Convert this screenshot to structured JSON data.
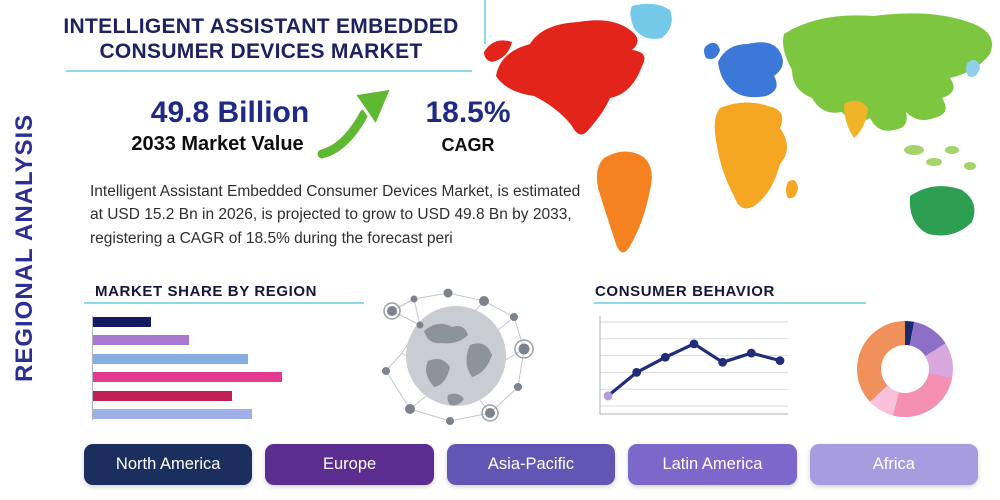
{
  "page": {
    "title": "INTELLIGENT ASSISTANT EMBEDDED CONSUMER DEVICES MARKET",
    "side_label": "REGIONAL ANALYSIS"
  },
  "stats": {
    "market_value": "49.8 Billion",
    "market_value_caption": "2033 Market Value",
    "cagr": "18.5%",
    "cagr_caption": "CAGR"
  },
  "description": "Intelligent Assistant Embedded Consumer Devices Market, is estimated at USD 15.2 Bn in 2026, is projected to grow to USD 49.8 Bn by 2033, registering a CAGR of 18.5% during the forecast peri",
  "section_headings": {
    "market_share": "MARKET SHARE BY REGION",
    "consumer_behavior": "CONSUMER BEHAVIOR"
  },
  "accent": {
    "line_color": "#8fd8ea",
    "arrow_green": "#5fb832",
    "title_navy": "#1e2160"
  },
  "region_buttons": [
    {
      "label": "North America",
      "color": "#1b2f5e"
    },
    {
      "label": "Europe",
      "color": "#5b2d90"
    },
    {
      "label": "Asia-Pacific",
      "color": "#6355b4"
    },
    {
      "label": "Latin America",
      "color": "#7b68ca"
    },
    {
      "label": "Africa",
      "color": "#a89ce0"
    }
  ],
  "map": {
    "regions": [
      {
        "name": "north-america",
        "color": "#e3241b"
      },
      {
        "name": "alaska",
        "color": "#e3241b"
      },
      {
        "name": "greenland",
        "color": "#74c8e8"
      },
      {
        "name": "south-america",
        "color": "#f58220"
      },
      {
        "name": "europe",
        "color": "#3c78d8"
      },
      {
        "name": "uk",
        "color": "#3c78d8"
      },
      {
        "name": "africa",
        "color": "#f5a623"
      },
      {
        "name": "madagascar",
        "color": "#f5a623"
      },
      {
        "name": "asia",
        "color": "#7dc63f"
      },
      {
        "name": "india",
        "color": "#f0b429"
      },
      {
        "name": "southeast-asia",
        "color": "#a5d46a"
      },
      {
        "name": "japan",
        "color": "#8fd0e8"
      },
      {
        "name": "australia",
        "color": "#2e9e52"
      }
    ]
  },
  "chart_data": [
    {
      "type": "bar",
      "orientation": "horizontal",
      "title": "MARKET SHARE BY REGION",
      "values": [
        29,
        48,
        78,
        95,
        70,
        80
      ],
      "colors": [
        "#151b60",
        "#a678cf",
        "#85ade0",
        "#e23a8e",
        "#c01e56",
        "#9fb0e8"
      ],
      "xlim": [
        0,
        100
      ],
      "grid": false,
      "legend": "none"
    },
    {
      "type": "line",
      "title": "CONSUMER BEHAVIOR",
      "x": [
        1,
        2,
        3,
        4,
        5,
        6,
        7
      ],
      "values": [
        1.2,
        4.0,
        5.8,
        7.4,
        5.2,
        6.3,
        5.4
      ],
      "ylim": [
        0,
        10
      ],
      "line_color": "#1f2d7a",
      "first_point_color": "#b39ddb",
      "grid": true,
      "legend": "none"
    },
    {
      "type": "pie",
      "donut": true,
      "slices": [
        {
          "color": "#1b2a6b",
          "value": 3
        },
        {
          "color": "#8e6fc8",
          "value": 13
        },
        {
          "color": "#d8a8dc",
          "value": 12
        },
        {
          "color": "#f48fb1",
          "value": 26
        },
        {
          "color": "#f8c1d9",
          "value": 9
        },
        {
          "color": "#f0915c",
          "value": 37
        }
      ]
    }
  ]
}
